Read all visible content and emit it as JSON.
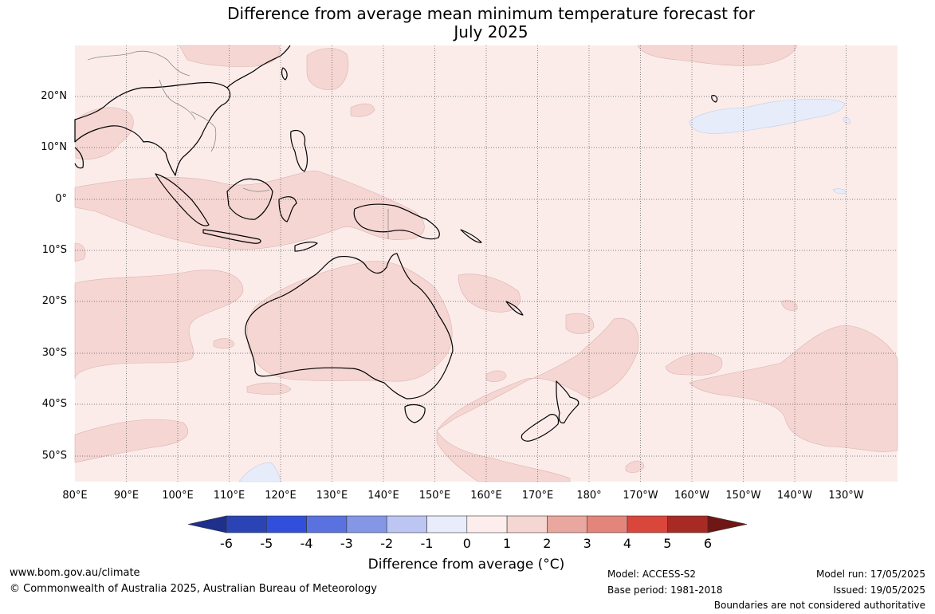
{
  "title": {
    "line1": "Difference from average mean minimum temperature forecast for",
    "line2": "July 2025"
  },
  "map": {
    "lat_labels": [
      "20°N",
      "10°N",
      "0°",
      "10°S",
      "20°S",
      "30°S",
      "40°S",
      "50°S"
    ],
    "lon_labels": [
      "80°E",
      "90°E",
      "100°E",
      "110°E",
      "120°E",
      "130°E",
      "140°E",
      "150°E",
      "160°E",
      "170°E",
      "180°",
      "170°W",
      "160°W",
      "150°W",
      "140°W",
      "130°W"
    ],
    "background_color": "#fbecea",
    "warm_anomaly_color": "#f5d6d3",
    "cool_anomaly_color": "#e6ecfa"
  },
  "colorbar": {
    "ticks": [
      "-6",
      "-5",
      "-4",
      "-3",
      "-2",
      "-1",
      "0",
      "1",
      "2",
      "3",
      "4",
      "5",
      "6"
    ],
    "colors": [
      "#1e2f8c",
      "#2b44b5",
      "#3050dc",
      "#5a72e0",
      "#8496e6",
      "#bdc6f2",
      "#e8ecfb",
      "#fdeeed",
      "#f5d6d3",
      "#eaa79f",
      "#e4857b",
      "#d9463c",
      "#a82a25",
      "#6e1714"
    ],
    "label": "Difference from average (°C)"
  },
  "footer": {
    "website": "www.bom.gov.au/climate",
    "copyright": "© Commonwealth of Australia 2025, Australian Bureau of Meteorology",
    "model": "Model: ACCESS-S2",
    "base_period": "Base period: 1981-2018",
    "model_run": "Model run: 17/05/2025",
    "issued": "Issued: 19/05/2025",
    "disclaimer": "Boundaries are not considered authoritative"
  }
}
